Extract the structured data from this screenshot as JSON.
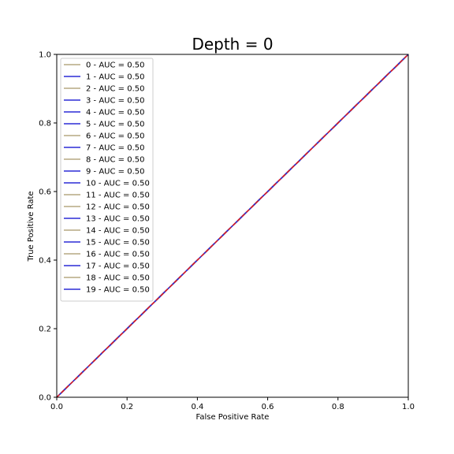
{
  "chart_data": {
    "type": "line",
    "title": "Depth = 0",
    "xlabel": "False Positive Rate",
    "ylabel": "True Positive Rate",
    "xlim": [
      0.0,
      1.0
    ],
    "ylim": [
      0.0,
      1.0
    ],
    "xticks": [
      "0.0",
      "0.2",
      "0.4",
      "0.6",
      "0.8",
      "1.0"
    ],
    "yticks": [
      "0.0",
      "0.2",
      "0.4",
      "0.6",
      "0.8",
      "1.0"
    ],
    "grid": false,
    "legend_position": "top-left",
    "series": [
      {
        "name": "0 - AUC = 0.50",
        "color": "#b5a882",
        "x": [
          0,
          1
        ],
        "y": [
          0,
          1
        ]
      },
      {
        "name": "1 - AUC = 0.50",
        "color": "#2b2bd6",
        "x": [
          0,
          1
        ],
        "y": [
          0,
          1
        ]
      },
      {
        "name": "2 - AUC = 0.50",
        "color": "#b5a882",
        "x": [
          0,
          1
        ],
        "y": [
          0,
          1
        ]
      },
      {
        "name": "3 - AUC = 0.50",
        "color": "#2b2bd6",
        "x": [
          0,
          1
        ],
        "y": [
          0,
          1
        ]
      },
      {
        "name": "4 - AUC = 0.50",
        "color": "#2b2bd6",
        "x": [
          0,
          1
        ],
        "y": [
          0,
          1
        ]
      },
      {
        "name": "5 - AUC = 0.50",
        "color": "#2b2bd6",
        "x": [
          0,
          1
        ],
        "y": [
          0,
          1
        ]
      },
      {
        "name": "6 - AUC = 0.50",
        "color": "#b5a882",
        "x": [
          0,
          1
        ],
        "y": [
          0,
          1
        ]
      },
      {
        "name": "7 - AUC = 0.50",
        "color": "#2b2bd6",
        "x": [
          0,
          1
        ],
        "y": [
          0,
          1
        ]
      },
      {
        "name": "8 - AUC = 0.50",
        "color": "#b5a882",
        "x": [
          0,
          1
        ],
        "y": [
          0,
          1
        ]
      },
      {
        "name": "9 - AUC = 0.50",
        "color": "#2b2bd6",
        "x": [
          0,
          1
        ],
        "y": [
          0,
          1
        ]
      },
      {
        "name": "10 - AUC = 0.50",
        "color": "#2b2bd6",
        "x": [
          0,
          1
        ],
        "y": [
          0,
          1
        ]
      },
      {
        "name": "11 - AUC = 0.50",
        "color": "#b5a882",
        "x": [
          0,
          1
        ],
        "y": [
          0,
          1
        ]
      },
      {
        "name": "12 - AUC = 0.50",
        "color": "#b5a882",
        "x": [
          0,
          1
        ],
        "y": [
          0,
          1
        ]
      },
      {
        "name": "13 - AUC = 0.50",
        "color": "#2b2bd6",
        "x": [
          0,
          1
        ],
        "y": [
          0,
          1
        ]
      },
      {
        "name": "14 - AUC = 0.50",
        "color": "#b5a882",
        "x": [
          0,
          1
        ],
        "y": [
          0,
          1
        ]
      },
      {
        "name": "15 - AUC = 0.50",
        "color": "#2b2bd6",
        "x": [
          0,
          1
        ],
        "y": [
          0,
          1
        ]
      },
      {
        "name": "16 - AUC = 0.50",
        "color": "#b5a882",
        "x": [
          0,
          1
        ],
        "y": [
          0,
          1
        ]
      },
      {
        "name": "17 - AUC = 0.50",
        "color": "#2b2bd6",
        "x": [
          0,
          1
        ],
        "y": [
          0,
          1
        ]
      },
      {
        "name": "18 - AUC = 0.50",
        "color": "#b5a882",
        "x": [
          0,
          1
        ],
        "y": [
          0,
          1
        ]
      },
      {
        "name": "19 - AUC = 0.50",
        "color": "#2b2bd6",
        "x": [
          0,
          1
        ],
        "y": [
          0,
          1
        ]
      }
    ],
    "reference_line": {
      "color": "#e31a1c",
      "style": "dashed",
      "x": [
        0,
        1
      ],
      "y": [
        0,
        1
      ]
    }
  }
}
